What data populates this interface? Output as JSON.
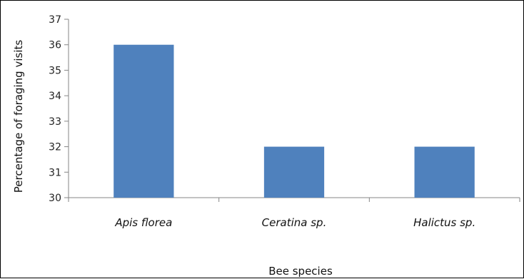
{
  "chart_data": {
    "type": "bar",
    "categories": [
      "Apis florea",
      "Ceratina sp.",
      "Halictus sp."
    ],
    "values": [
      36,
      32,
      32
    ],
    "xlabel": "Bee species",
    "ylabel": "Percentage of foraging visits",
    "ylim": [
      30,
      37
    ],
    "yticks": [
      30,
      31,
      32,
      33,
      34,
      35,
      36,
      37
    ],
    "bar_color": "#4f81bd",
    "grid": false,
    "legend": "none"
  }
}
